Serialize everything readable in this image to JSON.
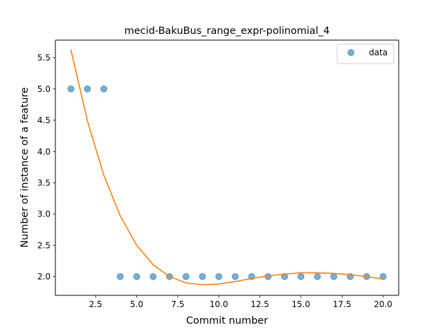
{
  "chart_data": {
    "type": "scatter",
    "title": "mecid-BakuBus_range_expr-polinomial_4",
    "xlabel": "Commit number",
    "ylabel": "Number of instance of a feature",
    "xlim": [
      0.05,
      20.95
    ],
    "ylim": [
      1.7,
      5.78
    ],
    "xticks": [
      2.5,
      5.0,
      7.5,
      10.0,
      12.5,
      15.0,
      17.5,
      20.0
    ],
    "xtick_labels": [
      "2.5",
      "5.0",
      "7.5",
      "10.0",
      "12.5",
      "15.0",
      "17.5",
      "20.0"
    ],
    "yticks": [
      2.0,
      2.5,
      3.0,
      3.5,
      4.0,
      4.5,
      5.0,
      5.5
    ],
    "ytick_labels": [
      "2.0",
      "2.5",
      "3.0",
      "3.5",
      "4.0",
      "4.5",
      "5.0",
      "5.5"
    ],
    "grid": false,
    "legend_position": "top-right",
    "series": [
      {
        "name": "data",
        "kind": "scatter",
        "color": "#1f77b4",
        "x": [
          1,
          2,
          3,
          4,
          5,
          6,
          7,
          8,
          9,
          10,
          11,
          12,
          13,
          14,
          15,
          16,
          17,
          18,
          19,
          20
        ],
        "y": [
          5,
          5,
          5,
          2,
          2,
          2,
          2,
          2,
          2,
          2,
          2,
          2,
          2,
          2,
          2,
          2,
          2,
          2,
          2,
          2
        ]
      },
      {
        "kind": "line",
        "color": "#ff7f0e",
        "x": [
          1,
          2,
          3,
          4,
          5,
          6,
          7,
          8,
          9,
          10,
          11,
          12,
          13,
          14,
          15,
          16,
          17,
          18,
          19,
          20
        ],
        "y": [
          5.62,
          4.49,
          3.62,
          2.97,
          2.5,
          2.19,
          2.0,
          1.9,
          1.87,
          1.88,
          1.92,
          1.97,
          2.01,
          2.04,
          2.06,
          2.06,
          2.05,
          2.03,
          2.0,
          1.96
        ]
      }
    ]
  }
}
